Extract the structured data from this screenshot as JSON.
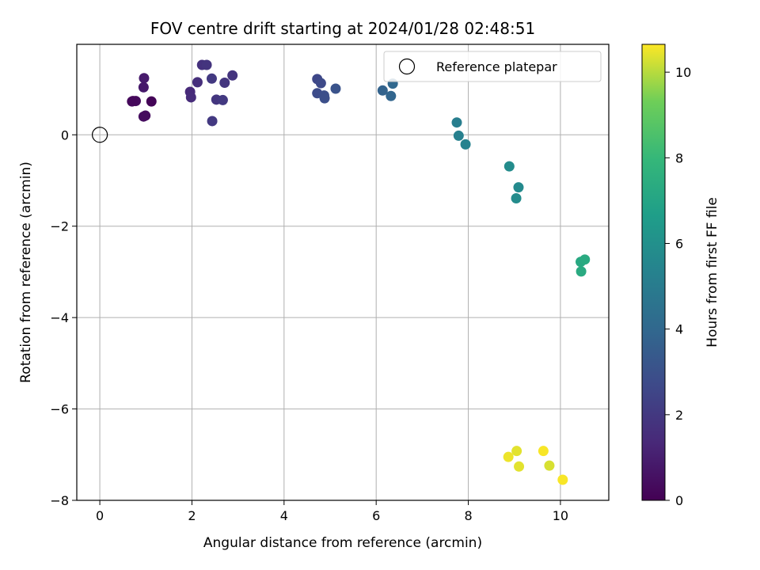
{
  "chart_data": {
    "type": "scatter",
    "title": "FOV centre drift starting at 2024/01/28 02:48:51",
    "xlabel": "Angular distance from reference (arcmin)",
    "ylabel": "Rotation from reference (arcmin)",
    "xlim": [
      -0.5,
      11.05
    ],
    "ylim": [
      -8.0,
      1.98
    ],
    "xticks": [
      0,
      2,
      4,
      6,
      8,
      10
    ],
    "yticks": [
      -8,
      -6,
      -4,
      -2,
      0
    ],
    "grid": true,
    "legend": {
      "position": "top-right",
      "entries": [
        "Reference platepar"
      ]
    },
    "reference_point": {
      "name": "Reference platepar",
      "x": 0,
      "y": 0,
      "marker": "open-circle"
    },
    "colorbar": {
      "label": "Hours from first FF file",
      "colormap": "viridis",
      "range": [
        0,
        10.65
      ],
      "ticks": [
        0,
        2,
        4,
        6,
        8,
        10
      ]
    },
    "points": [
      {
        "x": 0.72,
        "y": 0.74,
        "c": 0.2
      },
      {
        "x": 0.78,
        "y": 0.74,
        "c": 0.3
      },
      {
        "x": 0.7,
        "y": 0.73,
        "c": 0.25
      },
      {
        "x": 0.96,
        "y": 1.24,
        "c": 0.9
      },
      {
        "x": 0.95,
        "y": 1.04,
        "c": 0.8
      },
      {
        "x": 0.95,
        "y": 0.4,
        "c": 0.4
      },
      {
        "x": 0.99,
        "y": 0.42,
        "c": 0.35
      },
      {
        "x": 1.12,
        "y": 0.73,
        "c": 0.1
      },
      {
        "x": 1.96,
        "y": 0.94,
        "c": 1.4
      },
      {
        "x": 1.98,
        "y": 0.82,
        "c": 1.5
      },
      {
        "x": 2.12,
        "y": 1.15,
        "c": 1.6
      },
      {
        "x": 2.22,
        "y": 1.53,
        "c": 1.7
      },
      {
        "x": 2.32,
        "y": 1.53,
        "c": 1.8
      },
      {
        "x": 2.43,
        "y": 1.23,
        "c": 2.0
      },
      {
        "x": 2.44,
        "y": 0.3,
        "c": 2.0
      },
      {
        "x": 2.53,
        "y": 0.77,
        "c": 1.9
      },
      {
        "x": 2.67,
        "y": 0.76,
        "c": 2.0
      },
      {
        "x": 2.71,
        "y": 1.14,
        "c": 1.9
      },
      {
        "x": 2.88,
        "y": 1.3,
        "c": 1.8
      },
      {
        "x": 4.72,
        "y": 1.22,
        "c": 2.6
      },
      {
        "x": 4.8,
        "y": 1.13,
        "c": 2.7
      },
      {
        "x": 4.72,
        "y": 0.91,
        "c": 2.8
      },
      {
        "x": 4.87,
        "y": 0.86,
        "c": 2.9
      },
      {
        "x": 4.88,
        "y": 0.8,
        "c": 2.9
      },
      {
        "x": 5.12,
        "y": 1.01,
        "c": 3.1
      },
      {
        "x": 6.14,
        "y": 0.97,
        "c": 3.8
      },
      {
        "x": 6.32,
        "y": 0.85,
        "c": 3.9
      },
      {
        "x": 6.36,
        "y": 1.12,
        "c": 4.0
      },
      {
        "x": 7.75,
        "y": 0.27,
        "c": 5.1
      },
      {
        "x": 7.79,
        "y": -0.02,
        "c": 5.2
      },
      {
        "x": 7.94,
        "y": -0.21,
        "c": 5.3
      },
      {
        "x": 8.89,
        "y": -0.69,
        "c": 5.8
      },
      {
        "x": 9.09,
        "y": -1.15,
        "c": 5.7
      },
      {
        "x": 9.04,
        "y": -1.39,
        "c": 5.8
      },
      {
        "x": 10.44,
        "y": -2.78,
        "c": 7.2
      },
      {
        "x": 10.53,
        "y": -2.73,
        "c": 7.3
      },
      {
        "x": 10.45,
        "y": -2.99,
        "c": 7.3
      },
      {
        "x": 8.87,
        "y": -7.05,
        "c": 10.5
      },
      {
        "x": 9.05,
        "y": -6.92,
        "c": 10.4
      },
      {
        "x": 9.1,
        "y": -7.26,
        "c": 10.4
      },
      {
        "x": 9.63,
        "y": -6.92,
        "c": 10.6
      },
      {
        "x": 9.76,
        "y": -7.24,
        "c": 10.3
      },
      {
        "x": 10.05,
        "y": -7.55,
        "c": 10.6
      }
    ]
  }
}
